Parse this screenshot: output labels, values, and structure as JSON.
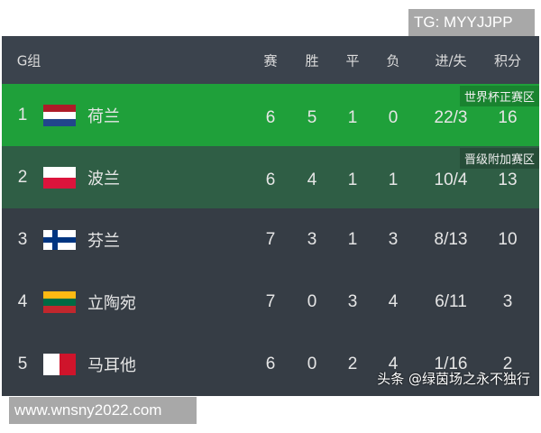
{
  "watermark_top": "TG: MYYJJPP",
  "watermark_bottom": "www.wnsny2022.com",
  "watermark_source": "头条 @绿茵场之永不独行",
  "header": {
    "group": "G组",
    "played": "赛",
    "won": "胜",
    "drawn": "平",
    "lost": "负",
    "goals": "进/失",
    "points": "积分"
  },
  "colors": {
    "qualified": "#1fa03a",
    "playoff": "#2f5e45",
    "default": "#363d45"
  },
  "rows": [
    {
      "rank": "1",
      "flag": "netherlands-flag",
      "team": "荷兰",
      "played": "6",
      "won": "5",
      "drawn": "1",
      "lost": "0",
      "goals": "22/3",
      "points": "16",
      "tag": "世界杯正赛区"
    },
    {
      "rank": "2",
      "flag": "poland-flag",
      "team": "波兰",
      "played": "6",
      "won": "4",
      "drawn": "1",
      "lost": "1",
      "goals": "10/4",
      "points": "13",
      "tag": "晋级附加赛区"
    },
    {
      "rank": "3",
      "flag": "finland-flag",
      "team": "芬兰",
      "played": "7",
      "won": "3",
      "drawn": "1",
      "lost": "3",
      "goals": "8/13",
      "points": "10"
    },
    {
      "rank": "4",
      "flag": "lithuania-flag",
      "team": "立陶宛",
      "played": "7",
      "won": "0",
      "drawn": "3",
      "lost": "4",
      "goals": "6/11",
      "points": "3"
    },
    {
      "rank": "5",
      "flag": "malta-flag",
      "team": "马耳他",
      "played": "6",
      "won": "0",
      "drawn": "2",
      "lost": "4",
      "goals": "1/16",
      "points": "2"
    }
  ]
}
